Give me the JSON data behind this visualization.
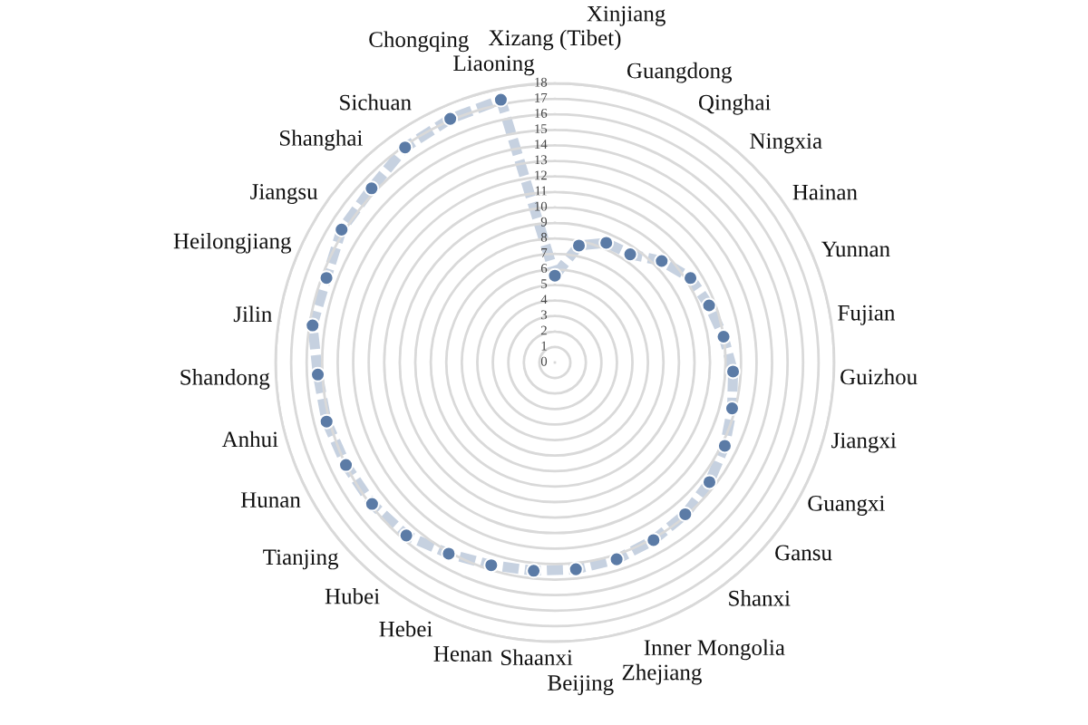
{
  "chart_data": {
    "type": "radar",
    "categories": [
      "Xizang (Tibet)",
      "Xinjiang",
      "Guangdong",
      "Qinghai",
      "Ningxia",
      "Hainan",
      "Yunnan",
      "Fujian",
      "Guizhou",
      "Jiangxi",
      "Guangxi",
      "Gansu",
      "Shanxi",
      "Inner Mongolia",
      "Zhejiang",
      "Beijing",
      "Shaanxi",
      "Henan",
      "Hebei",
      "Hubei",
      "Tianjing",
      "Hunan",
      "Anhui",
      "Shandong",
      "Jilin",
      "Heilongjiang",
      "Jiangsu",
      "Shanghai",
      "Sichuan",
      "Chongqing",
      "Liaoning"
    ],
    "series": [
      {
        "color": "#5b7ba6",
        "values": [
          5.6,
          7.7,
          8.4,
          8.5,
          9.5,
          10.3,
          10.6,
          11.0,
          11.5,
          11.8,
          12.2,
          12.6,
          12.9,
          13.1,
          13.3,
          13.4,
          13.5,
          13.7,
          14.1,
          14.7,
          14.9,
          15.0,
          15.2,
          15.3,
          15.8,
          15.7,
          16.2,
          16.3,
          16.9,
          17.1,
          17.3
        ]
      }
    ],
    "ylim": [
      0,
      18
    ],
    "yticks": [
      0,
      1,
      2,
      3,
      4,
      5,
      6,
      7,
      8,
      9,
      10,
      11,
      12,
      13,
      14,
      15,
      16,
      17,
      18
    ],
    "grid": "y",
    "marker": "circle",
    "line_style": "dashed"
  }
}
